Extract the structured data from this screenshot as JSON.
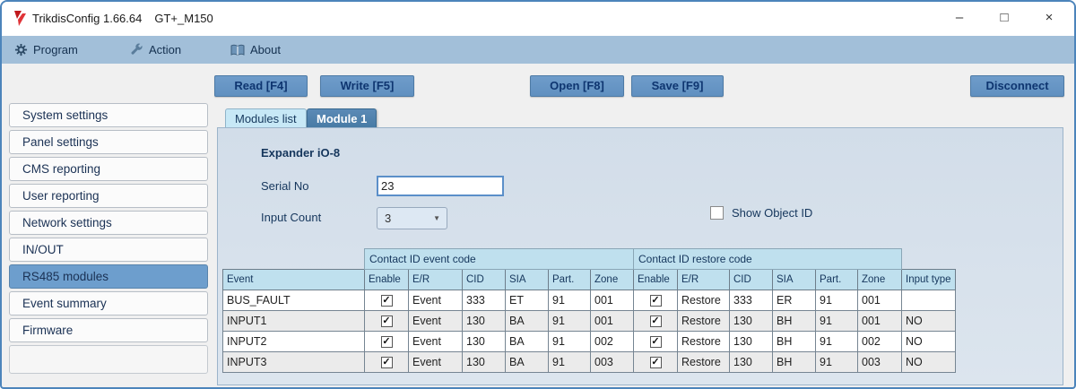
{
  "window": {
    "title_app": "TrikdisConfig 1.66.64",
    "title_device": "GT+_M150",
    "minimize_glyph": "–",
    "maximize_glyph": "□",
    "close_glyph": "×"
  },
  "menu": {
    "program": "Program",
    "action": "Action",
    "about": "About"
  },
  "toolbar": {
    "read": "Read [F4]",
    "write": "Write [F5]",
    "open": "Open [F8]",
    "save": "Save [F9]",
    "disconnect": "Disconnect"
  },
  "sidebar": {
    "items": [
      {
        "label": "System settings"
      },
      {
        "label": "Panel settings"
      },
      {
        "label": "CMS reporting"
      },
      {
        "label": "User reporting"
      },
      {
        "label": "Network settings"
      },
      {
        "label": "IN/OUT"
      },
      {
        "label": "RS485 modules"
      },
      {
        "label": "Event summary"
      },
      {
        "label": "Firmware"
      }
    ],
    "selected": "RS485 modules"
  },
  "tabs": {
    "modules_list": "Modules list",
    "module1": "Module 1"
  },
  "panel": {
    "heading": "Expander iO-8",
    "serial_label": "Serial No",
    "serial_value": "23",
    "input_count_label": "Input Count",
    "input_count_value": "3",
    "show_object_id_label": "Show Object ID",
    "show_object_id_checked": false
  },
  "table": {
    "group_event": "Contact ID event code",
    "group_restore": "Contact ID restore code",
    "columns": [
      "Event",
      "Enable",
      "E/R",
      "CID",
      "SIA",
      "Part.",
      "Zone",
      "Enable",
      "E/R",
      "CID",
      "SIA",
      "Part.",
      "Zone",
      "Input type"
    ],
    "rows": [
      {
        "cells": [
          "BUS_FAULT",
          true,
          "Event",
          "333",
          "ET",
          "91",
          "001",
          true,
          "Restore",
          "333",
          "ER",
          "91",
          "001",
          ""
        ]
      },
      {
        "cells": [
          "INPUT1",
          true,
          "Event",
          "130",
          "BA",
          "91",
          "001",
          true,
          "Restore",
          "130",
          "BH",
          "91",
          "001",
          "NO"
        ]
      },
      {
        "cells": [
          "INPUT2",
          true,
          "Event",
          "130",
          "BA",
          "91",
          "002",
          true,
          "Restore",
          "130",
          "BH",
          "91",
          "002",
          "NO"
        ]
      },
      {
        "cells": [
          "INPUT3",
          true,
          "Event",
          "130",
          "BA",
          "91",
          "003",
          true,
          "Restore",
          "130",
          "BH",
          "91",
          "003",
          "NO"
        ]
      }
    ]
  },
  "icons": {
    "check_glyph": "✓",
    "dropdown_arrow": "▼"
  },
  "colors": {
    "window_border": "#4c84bb",
    "menu_bar": "#a2bfd9",
    "button_blue": "#6090c0",
    "active_tab_blue": "#477aa4",
    "selected_item_blue": "#6d9ecd",
    "table_header_cyan": "#bfe0ee",
    "panel_bg": "#d6e0ea",
    "app_icon_red": "#c0181c"
  }
}
